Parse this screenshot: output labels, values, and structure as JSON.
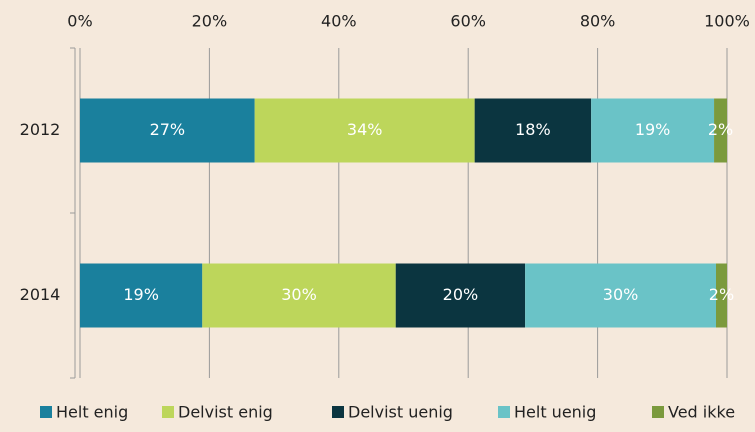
{
  "chart_data": {
    "type": "stacked-bar-horizontal",
    "categories": [
      "2012",
      "2014"
    ],
    "series": [
      {
        "name": "Helt enig",
        "color": "#1a809d",
        "values": [
          27,
          18.9
        ],
        "value_labels": [
          "27%",
          "19%"
        ]
      },
      {
        "name": "Delvist enig",
        "color": "#bdd65b",
        "values": [
          34,
          29.9
        ],
        "value_labels": [
          "34%",
          "30%"
        ]
      },
      {
        "name": "Delvist uenig",
        "color": "#0b3540",
        "values": [
          18,
          20
        ],
        "value_labels": [
          "18%",
          "20%"
        ]
      },
      {
        "name": "Helt uenig",
        "color": "#6ac3c7",
        "values": [
          19,
          29.5
        ],
        "value_labels": [
          "19%",
          "30%"
        ]
      },
      {
        "name": "Ved ikke",
        "color": "#7b9a3d",
        "values": [
          2,
          1.7
        ],
        "value_labels": [
          "2%",
          "2%"
        ]
      }
    ],
    "xlim": [
      0,
      100
    ],
    "xticks": [
      {
        "value": 0,
        "label": "0%"
      },
      {
        "value": 20,
        "label": "20%"
      },
      {
        "value": 40,
        "label": "40%"
      },
      {
        "value": 60,
        "label": "60%"
      },
      {
        "value": 80,
        "label": "80%"
      },
      {
        "value": 100,
        "label": "100%"
      }
    ],
    "grid": true,
    "legend": "bottom"
  }
}
